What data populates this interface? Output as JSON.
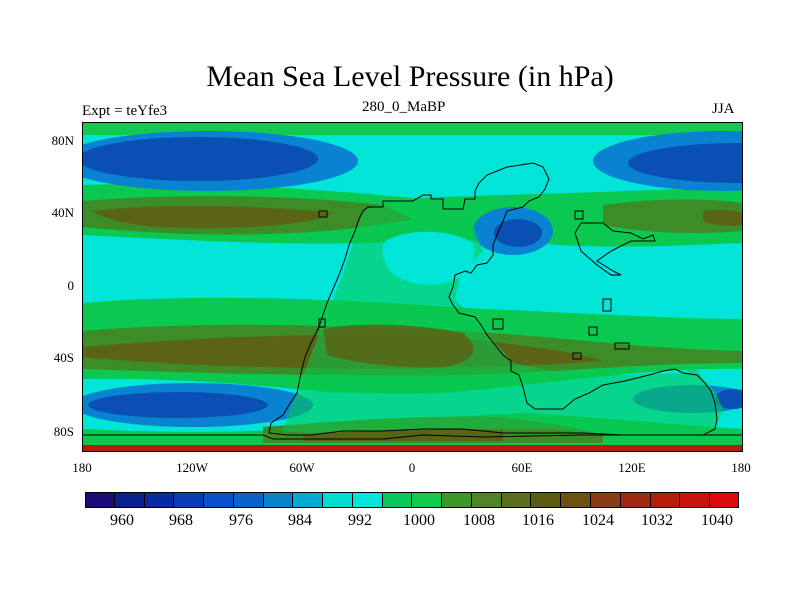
{
  "title": "Mean Sea Level Pressure (in hPa)",
  "subtitle_left": "Expt = teYfe3",
  "subtitle_center": "280_0_MaBP",
  "subtitle_right": "JJA",
  "lat_labels": [
    "80N",
    "40N",
    "0",
    "40S",
    "80S"
  ],
  "lon_labels": [
    "180",
    "120W",
    "60W",
    "0",
    "60E",
    "120E",
    "180"
  ],
  "colorbar_labels": [
    "960",
    "968",
    "976",
    "984",
    "992",
    "1000",
    "1008",
    "1016",
    "1024",
    "1032",
    "1040"
  ],
  "colors": {
    "bins": [
      "#1e0a78",
      "#0a1e8c",
      "#0a2aa0",
      "#0a3cb4",
      "#0a50c8",
      "#0a64c8",
      "#0a82c8",
      "#00aad2",
      "#00dcd2",
      "#00e5d8",
      "#0ac85a",
      "#14c850",
      "#3c9628",
      "#508228",
      "#5a6e1e",
      "#5a5a14",
      "#6e5014",
      "#8c3c14",
      "#a02814",
      "#b41e0a",
      "#c8140a",
      "#dc0a0a"
    ],
    "cyan": "#00e5d8",
    "green": "#0ac850",
    "olive": "#3c8c28",
    "brown": "#5a6414",
    "blue_mid": "#0a82d2",
    "blue_dark": "#0a50b4",
    "red_strip": "#b41e0a"
  },
  "chart_data": {
    "type": "contour-map",
    "title": "Mean Sea Level Pressure (in hPa)",
    "variable": "Mean Sea Level Pressure",
    "units": "hPa",
    "experiment": "teYfe3",
    "period": "280_0_MaBP",
    "season": "JJA",
    "x_range": [
      -180,
      180
    ],
    "y_range": [
      -90,
      90
    ],
    "x_ticks": [
      -180,
      -120,
      -60,
      0,
      60,
      120,
      180
    ],
    "y_ticks": [
      80,
      40,
      0,
      -40,
      -80
    ],
    "levels": [
      960,
      968,
      976,
      984,
      992,
      1000,
      1008,
      1016,
      1024,
      1032,
      1040
    ]
  }
}
